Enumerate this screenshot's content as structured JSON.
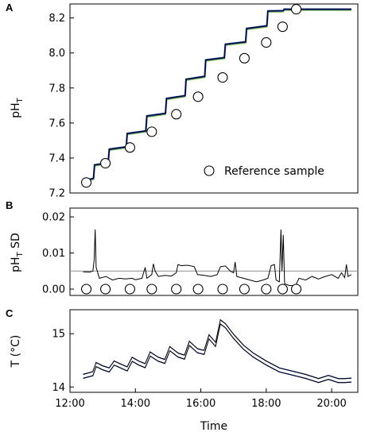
{
  "chart_data": [
    {
      "panel": "A",
      "type": "line",
      "ylabel": "pH",
      "ylabel_sub": "T",
      "ylim": [
        7.2,
        8.28
      ],
      "yticks": [
        "7.2",
        "7.4",
        "7.6",
        "7.8",
        "8.0",
        "8.2"
      ],
      "xlim_hours": [
        12.0,
        20.8
      ],
      "legend": "Reference sample",
      "legend_position": "bottom-right",
      "series": [
        {
          "name": "pH_T",
          "color": "#000000",
          "band_colors": [
            "#1f3fbf",
            "#2f9a8a",
            "#9acd32"
          ],
          "steps": [
            {
              "t": 12.4,
              "ph": 7.27
            },
            {
              "t": 12.75,
              "ph": 7.36
            },
            {
              "t": 13.2,
              "ph": 7.45
            },
            {
              "t": 13.75,
              "ph": 7.54
            },
            {
              "t": 14.35,
              "ph": 7.64
            },
            {
              "t": 14.95,
              "ph": 7.74
            },
            {
              "t": 15.55,
              "ph": 7.85
            },
            {
              "t": 16.15,
              "ph": 7.96
            },
            {
              "t": 16.75,
              "ph": 8.05
            },
            {
              "t": 17.4,
              "ph": 8.14
            },
            {
              "t": 18.05,
              "ph": 8.24
            },
            {
              "t": 18.55,
              "ph": 8.25
            },
            {
              "t": 20.6,
              "ph": 8.25
            }
          ]
        }
      ],
      "reference_samples": [
        {
          "t": "12:30",
          "ph": 7.26
        },
        {
          "t": "13:05",
          "ph": 7.37
        },
        {
          "t": "13:50",
          "ph": 7.46
        },
        {
          "t": "14:30",
          "ph": 7.55
        },
        {
          "t": "15:15",
          "ph": 7.65
        },
        {
          "t": "15:55",
          "ph": 7.75
        },
        {
          "t": "16:40",
          "ph": 7.86
        },
        {
          "t": "17:20",
          "ph": 7.97
        },
        {
          "t": "18:00",
          "ph": 8.06
        },
        {
          "t": "18:30",
          "ph": 8.15
        },
        {
          "t": "18:55",
          "ph": 8.25
        }
      ]
    },
    {
      "panel": "B",
      "type": "line",
      "ylabel": "pH",
      "ylabel_sub": "T",
      "ylabel_suffix": " SD",
      "ylim": [
        0,
        0.022
      ],
      "yticks": [
        "0.00",
        "0.01",
        "0.02"
      ],
      "reference_line": 0.005,
      "reference_line_color": "#9a9a9a",
      "series": [
        {
          "name": "pH_T SD",
          "color": "#000000",
          "points": [
            [
              12.4,
              0.0048
            ],
            [
              12.6,
              0.0047
            ],
            [
              12.7,
              0.005
            ],
            [
              12.74,
              0.008
            ],
            [
              12.77,
              0.0165
            ],
            [
              12.8,
              0.006
            ],
            [
              12.9,
              0.003
            ],
            [
              13.1,
              0.0035
            ],
            [
              13.3,
              0.0025
            ],
            [
              13.5,
              0.003
            ],
            [
              13.7,
              0.0028
            ],
            [
              13.9,
              0.003
            ],
            [
              14.0,
              0.0026
            ],
            [
              14.2,
              0.003
            ],
            [
              14.3,
              0.006
            ],
            [
              14.35,
              0.003
            ],
            [
              14.5,
              0.004
            ],
            [
              14.55,
              0.007
            ],
            [
              14.6,
              0.005
            ],
            [
              14.7,
              0.0035
            ],
            [
              14.9,
              0.0038
            ],
            [
              15.1,
              0.0036
            ],
            [
              15.25,
              0.0045
            ],
            [
              15.3,
              0.0068
            ],
            [
              15.4,
              0.0065
            ],
            [
              15.6,
              0.0066
            ],
            [
              15.8,
              0.0062
            ],
            [
              15.9,
              0.004
            ],
            [
              16.1,
              0.0038
            ],
            [
              16.3,
              0.0035
            ],
            [
              16.5,
              0.004
            ],
            [
              16.6,
              0.0062
            ],
            [
              16.75,
              0.0064
            ],
            [
              16.9,
              0.005
            ],
            [
              17.0,
              0.0045
            ],
            [
              17.05,
              0.0075
            ],
            [
              17.1,
              0.0035
            ],
            [
              17.3,
              0.003
            ],
            [
              17.5,
              0.0025
            ],
            [
              17.7,
              0.002
            ],
            [
              17.9,
              0.0025
            ],
            [
              18.05,
              0.003
            ],
            [
              18.15,
              0.0065
            ],
            [
              18.25,
              0.0068
            ],
            [
              18.3,
              0.0025
            ],
            [
              18.4,
              0.002
            ],
            [
              18.45,
              0.0165
            ],
            [
              18.48,
              0.005
            ],
            [
              18.52,
              0.015
            ],
            [
              18.56,
              0.0015
            ],
            [
              18.7,
              0.001
            ],
            [
              18.9,
              0.001
            ],
            [
              19.0,
              0.003
            ],
            [
              19.2,
              0.0025
            ],
            [
              19.4,
              0.0035
            ],
            [
              19.6,
              0.0028
            ],
            [
              19.8,
              0.0035
            ],
            [
              20.0,
              0.004
            ],
            [
              20.2,
              0.003
            ],
            [
              20.3,
              0.0045
            ],
            [
              20.4,
              0.0032
            ],
            [
              20.45,
              0.0068
            ],
            [
              20.5,
              0.0035
            ],
            [
              20.6,
              0.004
            ]
          ]
        }
      ],
      "reference_sample_times": [
        "12:30",
        "13:05",
        "13:50",
        "14:30",
        "15:15",
        "15:55",
        "16:40",
        "17:20",
        "18:00",
        "18:30",
        "18:55"
      ]
    },
    {
      "panel": "C",
      "type": "line",
      "ylabel": "T (°C)",
      "ylim": [
        13.9,
        15.45
      ],
      "yticks": [
        "14",
        "15"
      ],
      "xlabel": "Time",
      "xticks": [
        "12:00",
        "14:00",
        "16:00",
        "18:00",
        "20:00"
      ],
      "xtick_hours": [
        12,
        14,
        16,
        18,
        20
      ],
      "series": [
        {
          "name": "T",
          "color": "#000000",
          "halo_color": "#2a4fd0",
          "points": [
            [
              12.4,
              14.2
            ],
            [
              12.7,
              14.25
            ],
            [
              12.8,
              14.42
            ],
            [
              13.0,
              14.36
            ],
            [
              13.2,
              14.32
            ],
            [
              13.35,
              14.45
            ],
            [
              13.6,
              14.38
            ],
            [
              13.75,
              14.34
            ],
            [
              13.9,
              14.52
            ],
            [
              14.1,
              14.45
            ],
            [
              14.3,
              14.4
            ],
            [
              14.45,
              14.62
            ],
            [
              14.7,
              14.52
            ],
            [
              14.9,
              14.48
            ],
            [
              15.05,
              14.72
            ],
            [
              15.3,
              14.6
            ],
            [
              15.5,
              14.56
            ],
            [
              15.65,
              14.82
            ],
            [
              15.9,
              14.68
            ],
            [
              16.1,
              14.65
            ],
            [
              16.25,
              14.94
            ],
            [
              16.45,
              14.8
            ],
            [
              16.6,
              15.22
            ],
            [
              16.75,
              15.15
            ],
            [
              17.0,
              14.95
            ],
            [
              17.3,
              14.75
            ],
            [
              17.6,
              14.6
            ],
            [
              18.0,
              14.45
            ],
            [
              18.4,
              14.32
            ],
            [
              18.8,
              14.26
            ],
            [
              19.2,
              14.2
            ],
            [
              19.6,
              14.12
            ],
            [
              19.9,
              14.18
            ],
            [
              20.2,
              14.12
            ],
            [
              20.4,
              14.12
            ],
            [
              20.6,
              14.13
            ]
          ]
        }
      ]
    }
  ]
}
